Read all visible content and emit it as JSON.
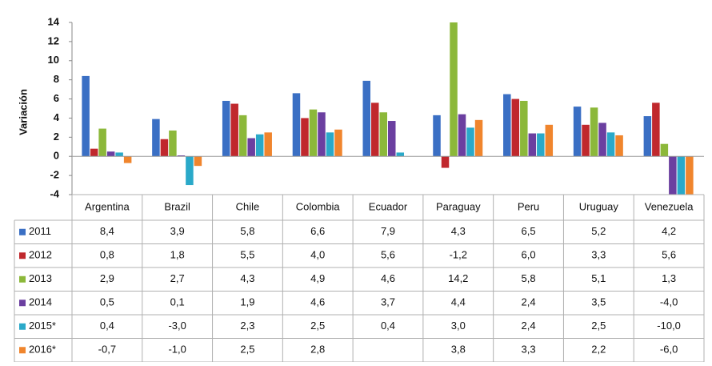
{
  "chart_data": {
    "type": "bar",
    "y_label": "Variación",
    "categories": [
      "Argentina",
      "Brazil",
      "Chile",
      "Colombia",
      "Ecuador",
      "Paraguay",
      "Peru",
      "Uruguay",
      "Venezuela"
    ],
    "series": [
      {
        "name": "2011",
        "color": "#3a6fc4",
        "values": [
          8.4,
          3.9,
          5.8,
          6.6,
          7.9,
          4.3,
          6.5,
          5.2,
          4.2
        ],
        "value_labels": [
          "8,4",
          "3,9",
          "5,8",
          "6,6",
          "7,9",
          "4,3",
          "6,5",
          "5,2",
          "4,2"
        ]
      },
      {
        "name": "2012",
        "color": "#c0282d",
        "values": [
          0.8,
          1.8,
          5.5,
          4.0,
          5.6,
          -1.2,
          6.0,
          3.3,
          5.6
        ],
        "value_labels": [
          "0,8",
          "1,8",
          "5,5",
          "4,0",
          "5,6",
          "-1,2",
          "6,0",
          "3,3",
          "5,6"
        ]
      },
      {
        "name": "2013",
        "color": "#8cb83a",
        "values": [
          2.9,
          2.7,
          4.3,
          4.9,
          4.6,
          14.2,
          5.8,
          5.1,
          1.3
        ],
        "value_labels": [
          "2,9",
          "2,7",
          "4,3",
          "4,9",
          "4,6",
          "14,2",
          "5,8",
          "5,1",
          "1,3"
        ]
      },
      {
        "name": "2014",
        "color": "#6b3fa0",
        "values": [
          0.5,
          0.1,
          1.9,
          4.6,
          3.7,
          4.4,
          2.4,
          3.5,
          -4.0
        ],
        "value_labels": [
          "0,5",
          "0,1",
          "1,9",
          "4,6",
          "3,7",
          "4,4",
          "2,4",
          "3,5",
          "-4,0"
        ]
      },
      {
        "name": "2015*",
        "color": "#2aa9c9",
        "values": [
          0.4,
          -3.0,
          2.3,
          2.5,
          0.4,
          3.0,
          2.4,
          2.5,
          -10.0
        ],
        "value_labels": [
          "0,4",
          "-3,0",
          "2,3",
          "2,5",
          "0,4",
          "3,0",
          "2,4",
          "2,5",
          "-10,0"
        ]
      },
      {
        "name": "2016*",
        "color": "#f0852d",
        "values": [
          -0.7,
          -1.0,
          2.5,
          2.8,
          null,
          3.8,
          3.3,
          2.2,
          -6.0
        ],
        "value_labels": [
          "-0,7",
          "-1,0",
          "2,5",
          "2,8",
          null,
          "3,8",
          "3,3",
          "2,2",
          "-6,0"
        ]
      }
    ],
    "ylim": [
      -4,
      14
    ],
    "yticks": [
      -4,
      -2,
      0,
      2,
      4,
      6,
      8,
      10,
      12,
      14
    ],
    "grid": false
  }
}
